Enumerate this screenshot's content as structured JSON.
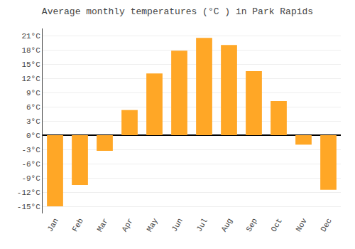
{
  "chart_data": {
    "type": "bar",
    "title": "Average monthly temperatures (°C ) in Park Rapids",
    "categories": [
      "Jan",
      "Feb",
      "Mar",
      "Apr",
      "May",
      "Jun",
      "Jul",
      "Aug",
      "Sep",
      "Oct",
      "Nov",
      "Dec"
    ],
    "values": [
      -15,
      -10.5,
      -3.3,
      5.3,
      13,
      17.8,
      20.5,
      19,
      13.5,
      7.2,
      -2,
      -11.5
    ],
    "color": "#FFA726",
    "ylim": [
      -16.5,
      22.5
    ],
    "yticks": [
      {
        "value": -15,
        "label": "-15°C"
      },
      {
        "value": -12,
        "label": "-12°C"
      },
      {
        "value": -9,
        "label": "-9°C"
      },
      {
        "value": -6,
        "label": "-6°C"
      },
      {
        "value": -3,
        "label": "-3°C"
      },
      {
        "value": 0,
        "label": "0°C"
      },
      {
        "value": 3,
        "label": "3°C"
      },
      {
        "value": 6,
        "label": "6°C"
      },
      {
        "value": 9,
        "label": "9°C"
      },
      {
        "value": 12,
        "label": "12°C"
      },
      {
        "value": 15,
        "label": "15°C"
      },
      {
        "value": 18,
        "label": "18°C"
      },
      {
        "value": 21,
        "label": "21°C"
      }
    ],
    "grid": true
  }
}
